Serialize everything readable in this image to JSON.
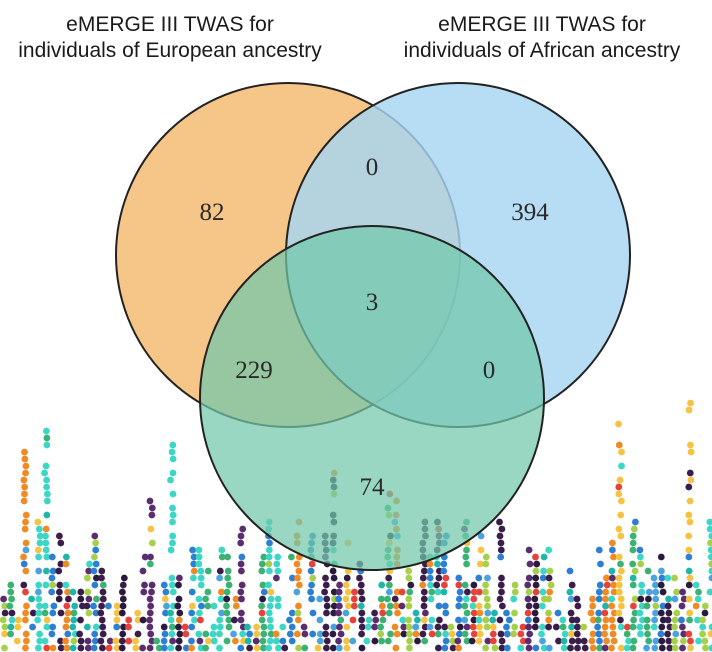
{
  "sets": [
    {
      "key": "eur",
      "label_line1": "eMERGE III  TWAS  for",
      "label_line2": "individuals of European ancestry",
      "color": "#F3BA6E"
    },
    {
      "key": "afr",
      "label_line1": "eMERGE III  TWAS  for",
      "label_line2": "individuals of African ancestry",
      "color": "#A7D5F3"
    },
    {
      "key": "third",
      "color": "#72C7AA"
    }
  ],
  "regions": {
    "eur_only": "82",
    "afr_only": "394",
    "third_only": "74",
    "eur_afr": "0",
    "eur_third": "229",
    "afr_third": "0",
    "all": "3"
  },
  "background": {
    "description_icon": "manhattan-plot-dots",
    "colors": [
      "#2b1a3e",
      "#3a1d4a",
      "#1fb5a8",
      "#3bd6c6",
      "#2c7fd1",
      "#f08a24",
      "#e8413a",
      "#a6d04a",
      "#f5c242",
      "#3bb273",
      "#5a2d6e",
      "#4aa3df"
    ]
  }
}
